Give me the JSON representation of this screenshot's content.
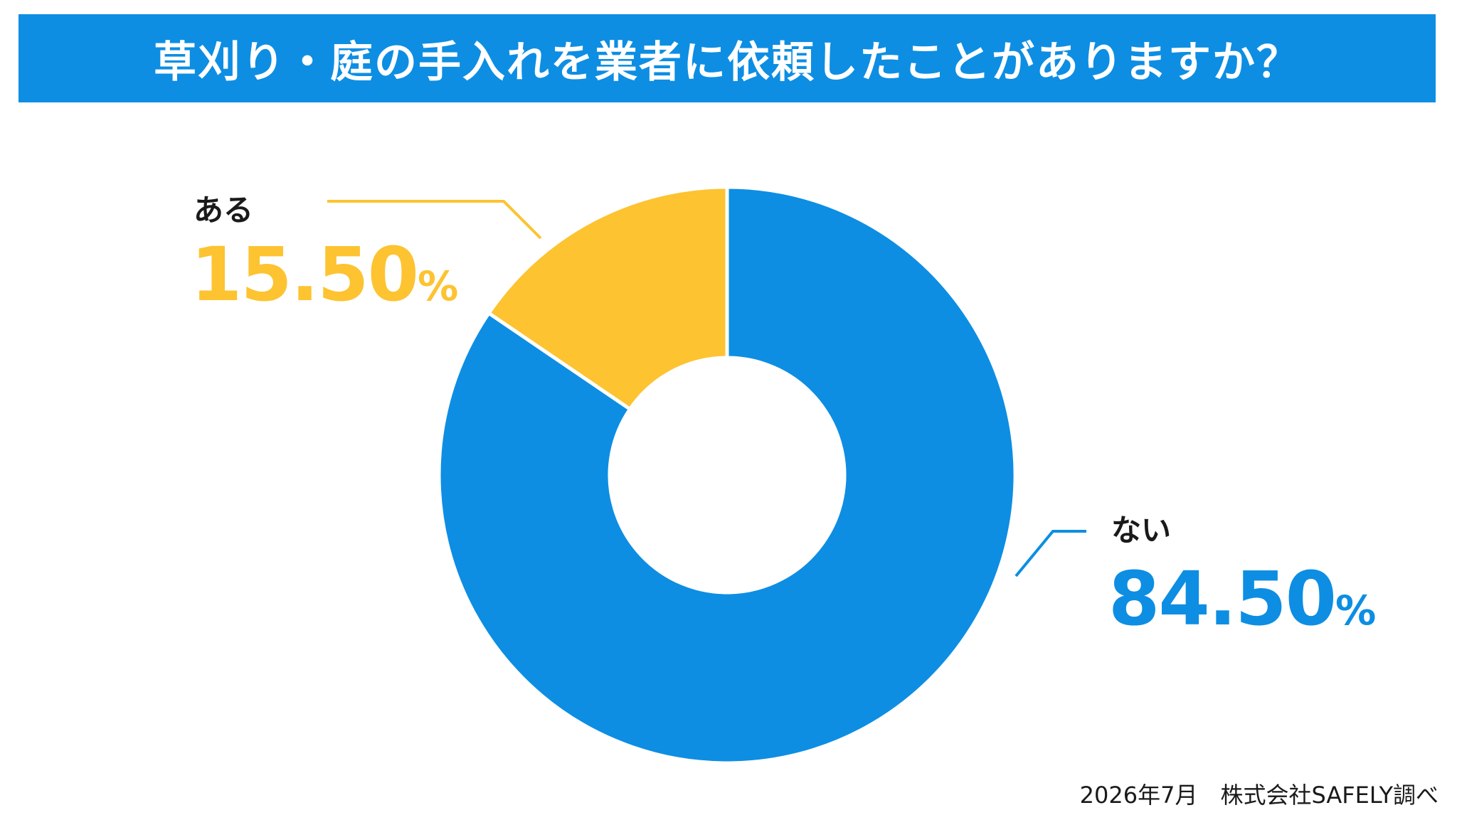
{
  "title": "草刈り・庭の手入れを業者に依頼したことがありますか？",
  "source": "2026年7月　株式会社SAFELY調べ",
  "colors": {
    "title_bg": "#0d8ee3",
    "aru": "#fdc330",
    "nai": "#0d8ee3"
  },
  "chart_data": {
    "type": "pie",
    "donut": true,
    "categories": [
      "ある",
      "ない"
    ],
    "values": [
      15.5,
      84.5
    ],
    "value_labels": [
      "15.50",
      "84.50"
    ],
    "unit": "%",
    "title": "草刈り・庭の手入れを業者に依頼したことがありますか？",
    "legend": "none"
  }
}
